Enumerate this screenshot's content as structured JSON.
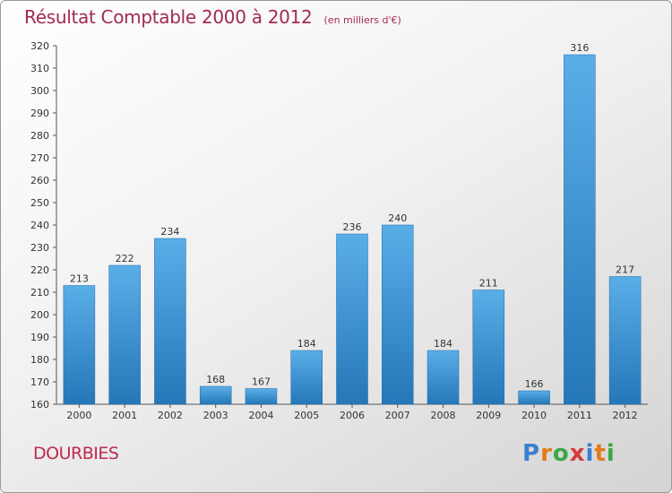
{
  "header": {
    "title": "Résultat Comptable 2000 à 2012",
    "subtitle": "(en milliers d'€)"
  },
  "footer": {
    "commune": "DOURBIES",
    "logo_letters": [
      "P",
      "r",
      "o",
      "x",
      "i",
      "t",
      "i"
    ],
    "logo_colors": [
      "#3a7fd0",
      "#e57a1a",
      "#3aa845",
      "#d43a3a",
      "#3a7fd0",
      "#e57a1a",
      "#3aa845"
    ]
  },
  "chart_data": {
    "type": "bar",
    "categories": [
      "2000",
      "2001",
      "2002",
      "2003",
      "2004",
      "2005",
      "2006",
      "2007",
      "2008",
      "2009",
      "2010",
      "2011",
      "2012"
    ],
    "values": [
      213,
      222,
      234,
      168,
      167,
      184,
      236,
      240,
      184,
      211,
      166,
      316,
      217
    ],
    "ylim": [
      160,
      320
    ],
    "yticks": [
      160,
      170,
      180,
      190,
      200,
      210,
      220,
      230,
      240,
      250,
      260,
      270,
      280,
      290,
      300,
      310,
      320
    ],
    "grid": false,
    "bar_color_top": "#5aaee8",
    "bar_color_bottom": "#2577b8"
  }
}
